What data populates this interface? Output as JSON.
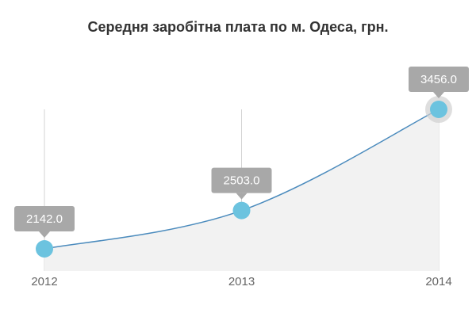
{
  "colors": {
    "line": "#4b8bbd",
    "area": "#f2f2f2",
    "point": "#6cc3df",
    "point_halo": "#d0d0d0",
    "tooltip_bg": "#a8a8a8",
    "gridline": "#d3d3d3"
  },
  "chart_data": {
    "type": "area",
    "title": "Середня заробітна плата по м. Одеса, грн.",
    "xlabel": "",
    "ylabel": "",
    "categories": [
      "2012",
      "2013",
      "2014"
    ],
    "series": [
      {
        "values": [
          2142.0,
          2503.0,
          3456.0
        ],
        "labels": [
          "2142.0",
          "2503.0",
          "3456.0"
        ]
      }
    ],
    "highlighted_index": 2,
    "grid": "vertical",
    "legend": "none"
  }
}
